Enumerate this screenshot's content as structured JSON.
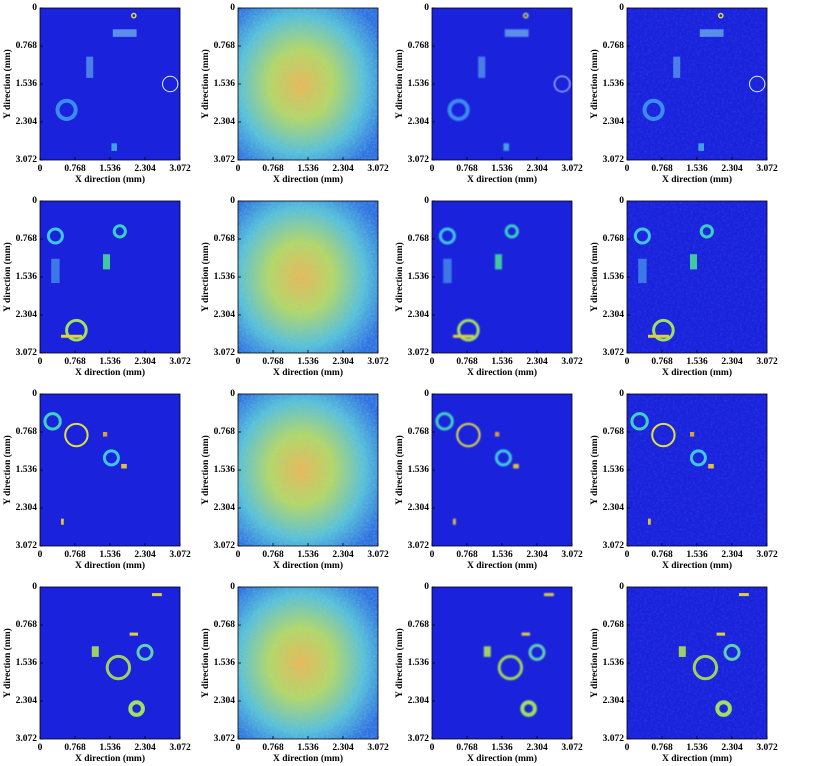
{
  "chart_data": [
    {
      "type": "image",
      "xlabel": "X direction (mm)",
      "ylabel": "Y direction (mm)",
      "xlim": [
        0,
        3.072
      ],
      "ylim": [
        3.072,
        0
      ],
      "xticks": [
        0,
        0.768,
        1.536,
        2.304,
        3.072
      ],
      "yticks": [
        0,
        0.768,
        1.536,
        2.304,
        3.072
      ]
    },
    {
      "type": "image",
      "xlabel": "X direction (mm)",
      "ylabel": "Y direction (mm)",
      "xlim": [
        0,
        3.072
      ],
      "ylim": [
        3.072,
        0
      ],
      "xticks": [
        0,
        0.768,
        1.536,
        2.304,
        3.072
      ],
      "yticks": [
        0,
        0.768,
        1.536,
        2.304,
        3.072
      ]
    },
    {
      "type": "image",
      "xlabel": "X direction (mm)",
      "ylabel": "Y direction (mm)",
      "xlim": [
        0,
        3.072
      ],
      "ylim": [
        3.072,
        0
      ],
      "xticks": [
        0,
        0.768,
        1.536,
        2.304,
        3.072
      ],
      "yticks": [
        0,
        0.768,
        1.536,
        2.304,
        3.072
      ]
    },
    {
      "type": "image",
      "xlabel": "X direction (mm)",
      "ylabel": "Y direction (mm)",
      "xlim": [
        0,
        3.072
      ],
      "ylim": [
        3.072,
        0
      ],
      "xticks": [
        0,
        0.768,
        1.536,
        2.304,
        3.072
      ],
      "yticks": [
        0,
        0.768,
        1.536,
        2.304,
        3.072
      ]
    },
    {
      "type": "image",
      "xlabel": "X direction (mm)",
      "ylabel": "Y direction (mm)",
      "xlim": [
        0,
        3.072
      ],
      "ylim": [
        3.072,
        0
      ],
      "xticks": [
        0,
        0.768,
        1.536,
        2.304,
        3.072
      ],
      "yticks": [
        0,
        0.768,
        1.536,
        2.304,
        3.072
      ]
    },
    {
      "type": "image",
      "xlabel": "X direction (mm)",
      "ylabel": "Y direction (mm)",
      "xlim": [
        0,
        3.072
      ],
      "ylim": [
        3.072,
        0
      ],
      "xticks": [
        0,
        0.768,
        1.536,
        2.304,
        3.072
      ],
      "yticks": [
        0,
        0.768,
        1.536,
        2.304,
        3.072
      ]
    },
    {
      "type": "image",
      "xlabel": "X direction (mm)",
      "ylabel": "Y direction (mm)",
      "xlim": [
        0,
        3.072
      ],
      "ylim": [
        3.072,
        0
      ],
      "xticks": [
        0,
        0.768,
        1.536,
        2.304,
        3.072
      ],
      "yticks": [
        0,
        0.768,
        1.536,
        2.304,
        3.072
      ]
    },
    {
      "type": "image",
      "xlabel": "X direction (mm)",
      "ylabel": "Y direction (mm)",
      "xlim": [
        0,
        3.072
      ],
      "ylim": [
        3.072,
        0
      ],
      "xticks": [
        0,
        0.768,
        1.536,
        2.304,
        3.072
      ],
      "yticks": [
        0,
        0.768,
        1.536,
        2.304,
        3.072
      ]
    },
    {
      "type": "image",
      "xlabel": "X direction (mm)",
      "ylabel": "Y direction (mm)",
      "xlim": [
        0,
        3.072
      ],
      "ylim": [
        3.072,
        0
      ],
      "xticks": [
        0,
        0.768,
        1.536,
        2.304,
        3.072
      ],
      "yticks": [
        0,
        0.768,
        1.536,
        2.304,
        3.072
      ]
    },
    {
      "type": "image",
      "xlabel": "X direction (mm)",
      "ylabel": "Y direction (mm)",
      "xlim": [
        0,
        3.072
      ],
      "ylim": [
        3.072,
        0
      ],
      "xticks": [
        0,
        0.768,
        1.536,
        2.304,
        3.072
      ],
      "yticks": [
        0,
        0.768,
        1.536,
        2.304,
        3.072
      ]
    },
    {
      "type": "image",
      "xlabel": "X direction (mm)",
      "ylabel": "Y direction (mm)",
      "xlim": [
        0,
        3.072
      ],
      "ylim": [
        3.072,
        0
      ],
      "xticks": [
        0,
        0.768,
        1.536,
        2.304,
        3.072
      ],
      "yticks": [
        0,
        0.768,
        1.536,
        2.304,
        3.072
      ]
    },
    {
      "type": "image",
      "xlabel": "X direction (mm)",
      "ylabel": "Y direction (mm)",
      "xlim": [
        0,
        3.072
      ],
      "ylim": [
        3.072,
        0
      ],
      "xticks": [
        0,
        0.768,
        1.536,
        2.304,
        3.072
      ],
      "yticks": [
        0,
        0.768,
        1.536,
        2.304,
        3.072
      ]
    },
    {
      "type": "image",
      "xlabel": "X direction (mm)",
      "ylabel": "Y direction (mm)",
      "xlim": [
        0,
        3.072
      ],
      "ylim": [
        3.072,
        0
      ],
      "xticks": [
        0,
        0.768,
        1.536,
        2.304,
        3.072
      ],
      "yticks": [
        0,
        0.768,
        1.536,
        2.304,
        3.072
      ]
    },
    {
      "type": "image",
      "xlabel": "X direction (mm)",
      "ylabel": "Y direction (mm)",
      "xlim": [
        0,
        3.072
      ],
      "ylim": [
        3.072,
        0
      ],
      "xticks": [
        0,
        0.768,
        1.536,
        2.304,
        3.072
      ],
      "yticks": [
        0,
        0.768,
        1.536,
        2.304,
        3.072
      ]
    },
    {
      "type": "image",
      "xlabel": "X direction (mm)",
      "ylabel": "Y direction (mm)",
      "xlim": [
        0,
        3.072
      ],
      "ylim": [
        3.072,
        0
      ],
      "xticks": [
        0,
        0.768,
        1.536,
        2.304,
        3.072
      ],
      "yticks": [
        0,
        0.768,
        1.536,
        2.304,
        3.072
      ]
    },
    {
      "type": "image",
      "xlabel": "X direction (mm)",
      "ylabel": "Y direction (mm)",
      "xlim": [
        0,
        3.072
      ],
      "ylim": [
        3.072,
        0
      ],
      "xticks": [
        0,
        0.768,
        1.536,
        2.304,
        3.072
      ],
      "yticks": [
        0,
        0.768,
        1.536,
        2.304,
        3.072
      ]
    }
  ]
}
